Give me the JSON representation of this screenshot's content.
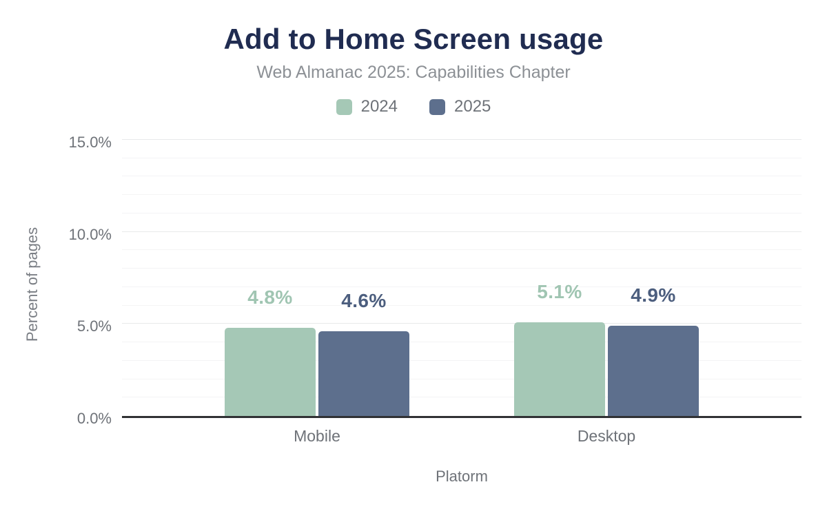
{
  "chart_data": {
    "type": "bar",
    "title": "Add to Home Screen usage",
    "subtitle": "Web Almanac 2025: Capabilities Chapter",
    "categories": [
      "Mobile",
      "Desktop"
    ],
    "series": [
      {
        "name": "2024",
        "color": "#a5c8b6",
        "label_color": "#a0c5b2",
        "values": [
          4.8,
          5.1
        ],
        "labels": [
          "4.8%",
          "5.1%"
        ]
      },
      {
        "name": "2025",
        "color": "#5d6f8d",
        "label_color": "#4c5e7e",
        "values": [
          4.6,
          4.9
        ],
        "labels": [
          "4.6%",
          "4.9%"
        ]
      }
    ],
    "xlabel": "Platorm",
    "ylabel": "Percent of pages",
    "ylim": [
      0,
      15
    ],
    "yticks": [
      {
        "value": 0,
        "label": "0.0%"
      },
      {
        "value": 5,
        "label": "5.0%"
      },
      {
        "value": 10,
        "label": "10.0%"
      },
      {
        "value": 15,
        "label": "15.0%"
      }
    ],
    "minor_gridline_step": 1,
    "major_gridline_step": 5,
    "grid": true,
    "legend_position": "top"
  },
  "colors": {
    "title": "#202c51",
    "subtitle": "#8c9095",
    "axis_text": "#6e7278",
    "axis_line": "#303134",
    "gridline_major": "#e8e9ea",
    "gridline_minor": "#f4f4f5"
  }
}
